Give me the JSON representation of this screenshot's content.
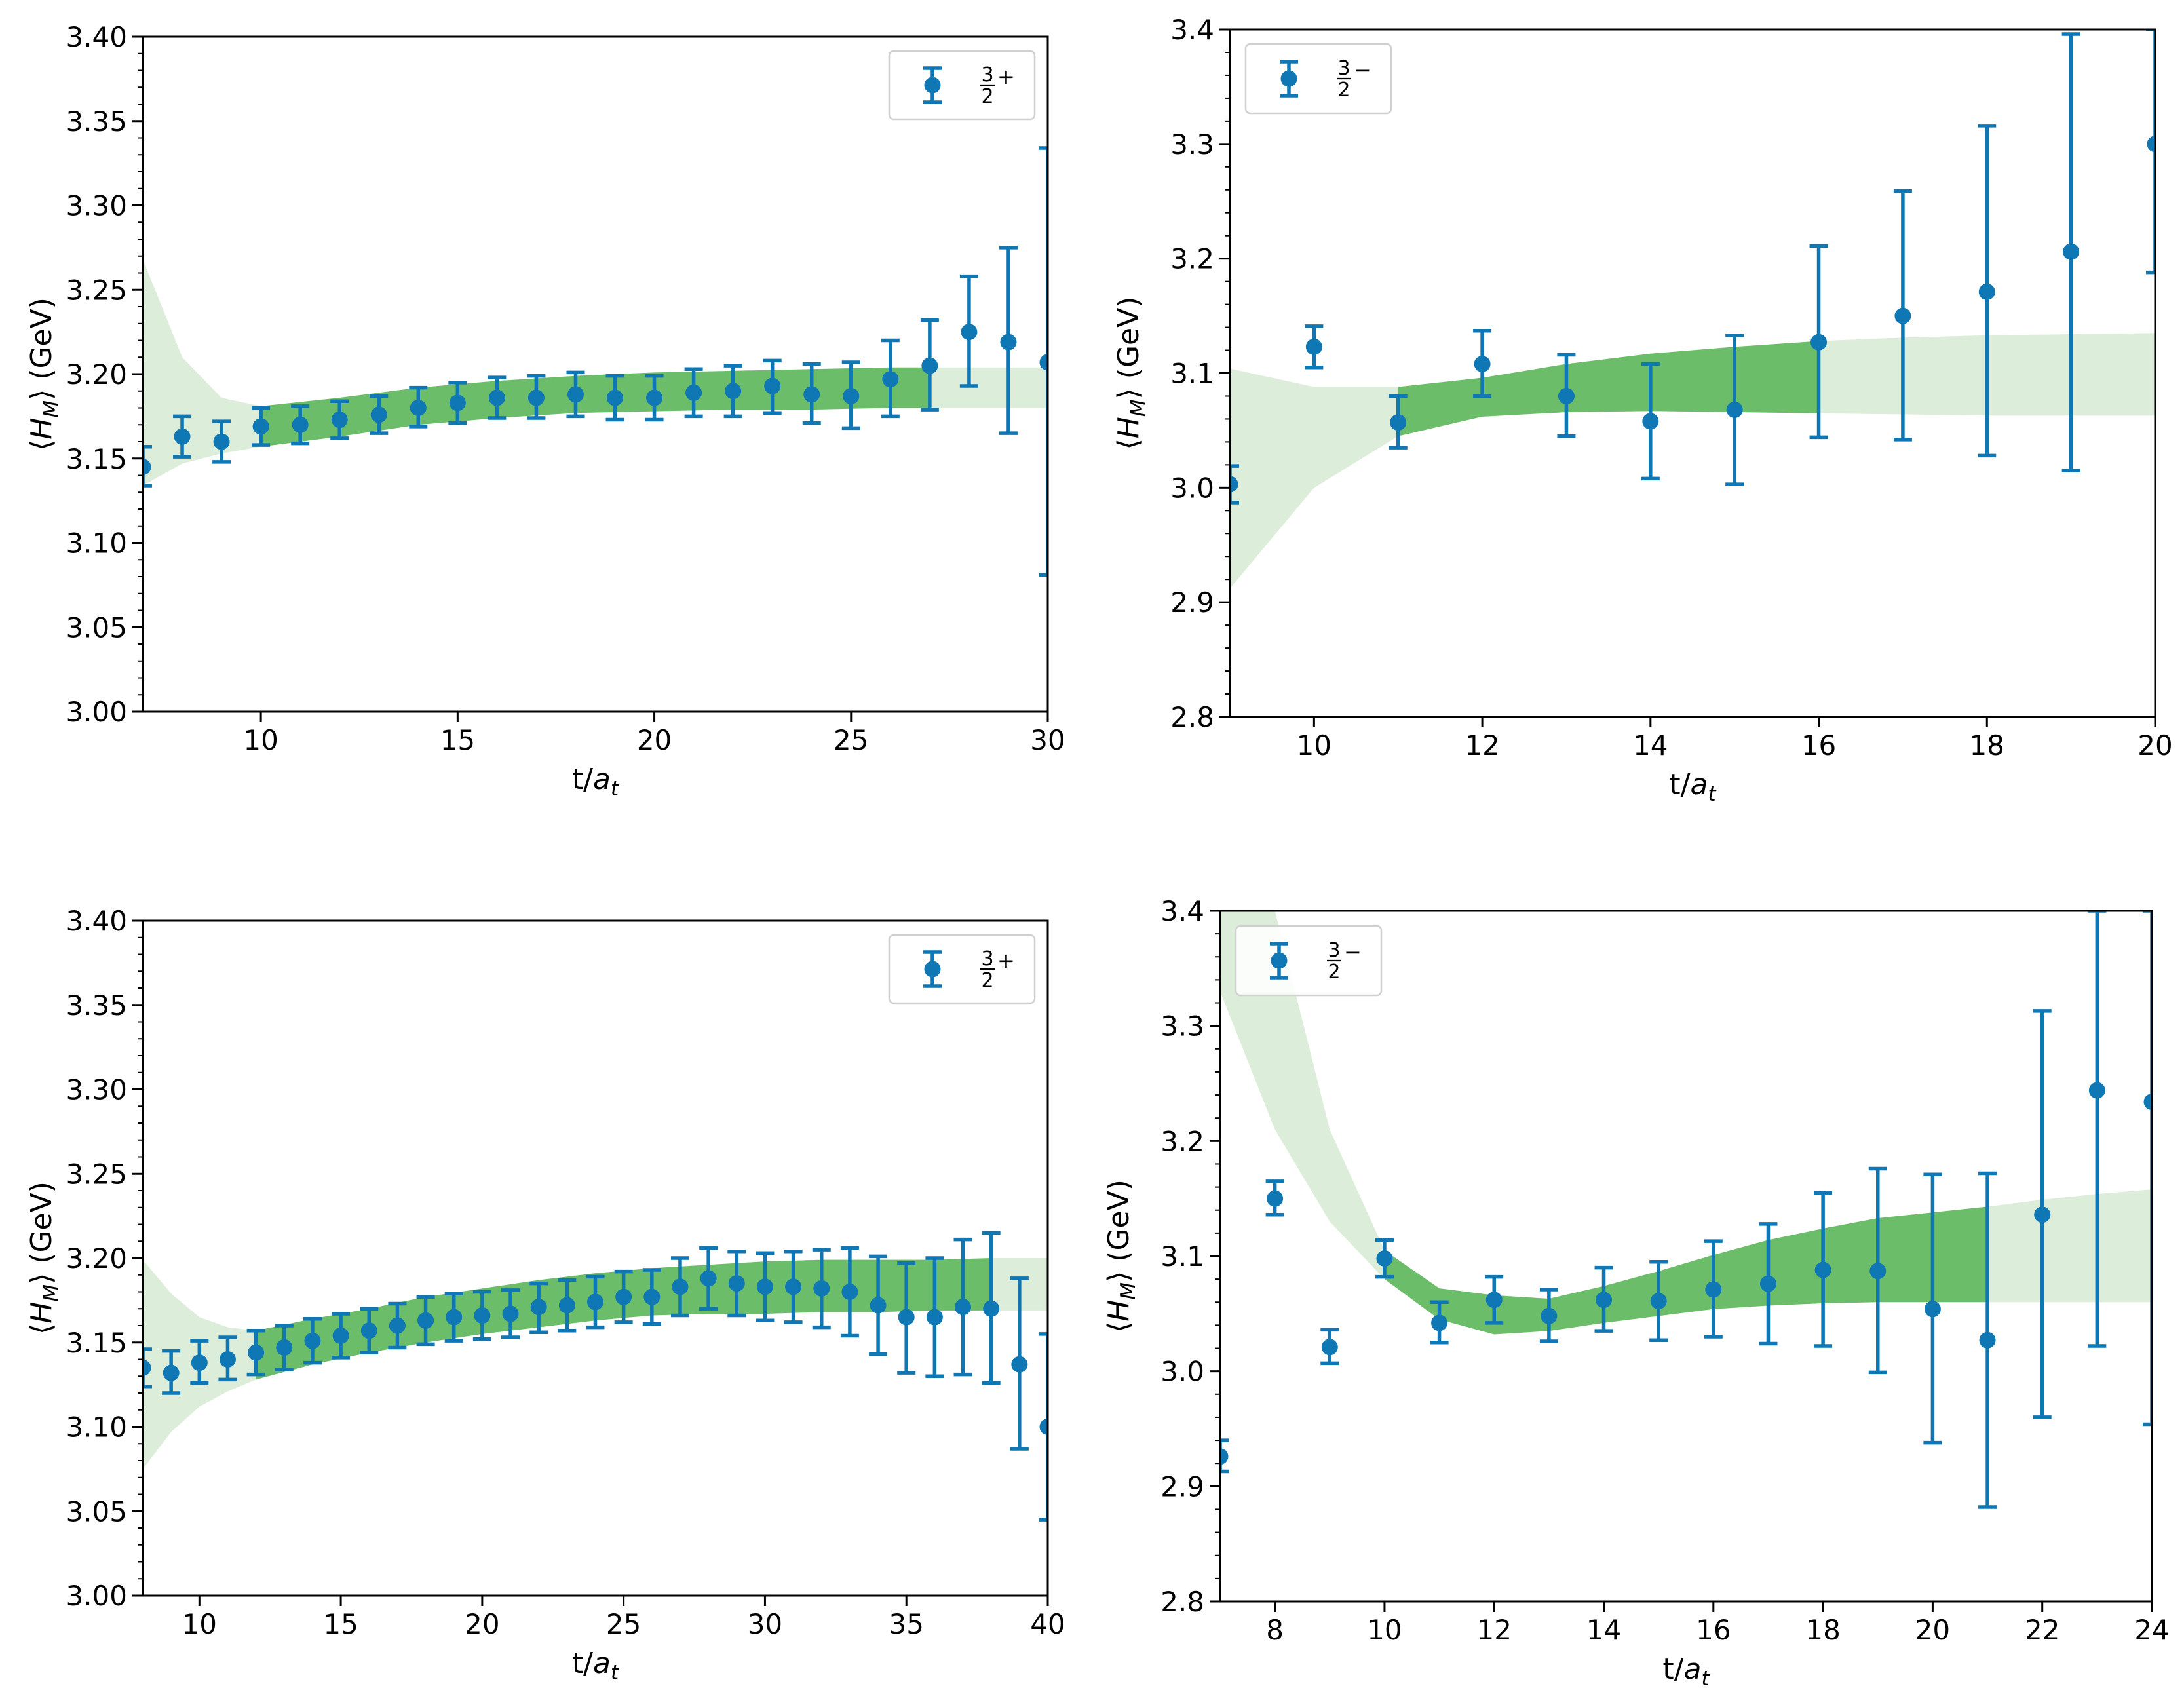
{
  "colors": {
    "points": "#0e77b4",
    "band_fit": "#6cbd69",
    "band_light": "#dcedd9",
    "axes": "#000000",
    "background": "#ffffff"
  },
  "chart_data": [
    {
      "type": "scatter",
      "panel": "top-left",
      "xlabel_text": "t/",
      "xlabel_symbol": "a",
      "xlabel_sub": "t",
      "ylabel_open": "⟨",
      "ylabel_symbol": "H",
      "ylabel_sub": "M",
      "ylabel_close": "⟩ (GeV)",
      "xlim": [
        7,
        30
      ],
      "ylim": [
        3.0,
        3.4
      ],
      "xticks": [
        10,
        15,
        20,
        25,
        30
      ],
      "xtick_labels": [
        "10",
        "15",
        "20",
        "25",
        "30"
      ],
      "yticks": [
        3.0,
        3.05,
        3.1,
        3.15,
        3.2,
        3.25,
        3.3,
        3.35,
        3.4
      ],
      "ytick_labels": [
        "3.00",
        "3.05",
        "3.10",
        "3.15",
        "3.20",
        "3.25",
        "3.30",
        "3.35",
        "3.40"
      ],
      "x_minor": [],
      "y_minor_step": 0.01,
      "legend": {
        "position": "upper right",
        "label_num": "3",
        "label_den": "2",
        "label_parity": "+"
      },
      "points": [
        [
          7,
          3.145,
          3.134,
          3.157
        ],
        [
          8,
          3.163,
          3.151,
          3.175
        ],
        [
          9,
          3.16,
          3.148,
          3.172
        ],
        [
          10,
          3.169,
          3.158,
          3.18
        ],
        [
          11,
          3.17,
          3.159,
          3.181
        ],
        [
          12,
          3.173,
          3.162,
          3.184
        ],
        [
          13,
          3.176,
          3.165,
          3.187
        ],
        [
          14,
          3.18,
          3.169,
          3.192
        ],
        [
          15,
          3.183,
          3.171,
          3.195
        ],
        [
          16,
          3.186,
          3.174,
          3.198
        ],
        [
          17,
          3.186,
          3.174,
          3.199
        ],
        [
          18,
          3.188,
          3.175,
          3.201
        ],
        [
          19,
          3.186,
          3.173,
          3.199
        ],
        [
          20,
          3.186,
          3.173,
          3.199
        ],
        [
          21,
          3.189,
          3.175,
          3.203
        ],
        [
          22,
          3.19,
          3.175,
          3.205
        ],
        [
          23,
          3.193,
          3.177,
          3.208
        ],
        [
          24,
          3.188,
          3.171,
          3.206
        ],
        [
          25,
          3.187,
          3.168,
          3.207
        ],
        [
          26,
          3.197,
          3.175,
          3.22
        ],
        [
          27,
          3.205,
          3.179,
          3.232
        ],
        [
          28,
          3.225,
          3.193,
          3.258
        ],
        [
          29,
          3.219,
          3.165,
          3.275
        ],
        [
          30,
          3.207,
          3.081,
          3.334
        ]
      ],
      "band_light": [
        [
          7,
          3.134,
          3.268
        ],
        [
          8,
          3.147,
          3.21
        ],
        [
          9,
          3.153,
          3.186
        ],
        [
          10,
          3.157,
          3.181
        ],
        [
          12,
          3.163,
          3.186
        ],
        [
          14,
          3.17,
          3.192
        ],
        [
          16,
          3.174,
          3.196
        ],
        [
          18,
          3.177,
          3.199
        ],
        [
          20,
          3.178,
          3.201
        ],
        [
          22,
          3.179,
          3.202
        ],
        [
          24,
          3.179,
          3.203
        ],
        [
          26,
          3.18,
          3.204
        ],
        [
          28,
          3.18,
          3.204
        ],
        [
          30,
          3.18,
          3.204
        ]
      ],
      "band_fit": [
        [
          10,
          3.157,
          3.181
        ],
        [
          12,
          3.163,
          3.186
        ],
        [
          14,
          3.17,
          3.192
        ],
        [
          16,
          3.174,
          3.196
        ],
        [
          18,
          3.177,
          3.199
        ],
        [
          20,
          3.178,
          3.201
        ],
        [
          22,
          3.179,
          3.202
        ],
        [
          24,
          3.179,
          3.203
        ],
        [
          26,
          3.18,
          3.204
        ],
        [
          27,
          3.18,
          3.204
        ]
      ]
    },
    {
      "type": "scatter",
      "panel": "top-right",
      "xlabel_text": "t/",
      "xlabel_symbol": "a",
      "xlabel_sub": "t",
      "ylabel_open": "⟨",
      "ylabel_symbol": "H",
      "ylabel_sub": "M",
      "ylabel_close": "⟩ (GeV)",
      "xlim": [
        9,
        20
      ],
      "ylim": [
        2.8,
        3.4
      ],
      "xticks": [
        10,
        12,
        14,
        16,
        18,
        20
      ],
      "xtick_labels": [
        "10",
        "12",
        "14",
        "16",
        "18",
        "20"
      ],
      "x_minor": [],
      "yticks": [
        2.8,
        2.9,
        3.0,
        3.1,
        3.2,
        3.3,
        3.4
      ],
      "ytick_labels": [
        "2.8",
        "2.9",
        "3.0",
        "3.1",
        "3.2",
        "3.3",
        "3.4"
      ],
      "y_minor_step": 0.02,
      "legend": {
        "position": "upper left",
        "label_num": "3",
        "label_den": "2",
        "label_parity": "−"
      },
      "points": [
        [
          9,
          3.003,
          2.987,
          3.019
        ],
        [
          10,
          3.123,
          3.105,
          3.141
        ],
        [
          11,
          3.057,
          3.035,
          3.08
        ],
        [
          12,
          3.108,
          3.08,
          3.137
        ],
        [
          13,
          3.08,
          3.045,
          3.116
        ],
        [
          14,
          3.058,
          3.008,
          3.108
        ],
        [
          15,
          3.068,
          3.003,
          3.133
        ],
        [
          16,
          3.127,
          3.044,
          3.211
        ],
        [
          17,
          3.15,
          3.042,
          3.259
        ],
        [
          18,
          3.171,
          3.028,
          3.316
        ],
        [
          19,
          3.206,
          3.015,
          3.396
        ],
        [
          20,
          3.3,
          3.188,
          3.4
        ]
      ],
      "band_light": [
        [
          9,
          2.912,
          3.104
        ],
        [
          10,
          3.0,
          3.088
        ],
        [
          11,
          3.045,
          3.088
        ],
        [
          12,
          3.062,
          3.096
        ],
        [
          13,
          3.066,
          3.108
        ],
        [
          14,
          3.067,
          3.117
        ],
        [
          15,
          3.066,
          3.123
        ],
        [
          16,
          3.065,
          3.128
        ],
        [
          17,
          3.064,
          3.131
        ],
        [
          18,
          3.063,
          3.133
        ],
        [
          19,
          3.063,
          3.134
        ],
        [
          20,
          3.063,
          3.135
        ]
      ],
      "band_fit": [
        [
          11,
          3.045,
          3.088
        ],
        [
          12,
          3.062,
          3.096
        ],
        [
          13,
          3.066,
          3.108
        ],
        [
          14,
          3.067,
          3.117
        ],
        [
          15,
          3.066,
          3.123
        ],
        [
          16,
          3.065,
          3.128
        ]
      ]
    },
    {
      "type": "scatter",
      "panel": "bottom-left",
      "xlabel_text": "t/",
      "xlabel_symbol": "a",
      "xlabel_sub": "t",
      "ylabel_open": "⟨",
      "ylabel_symbol": "H",
      "ylabel_sub": "M",
      "ylabel_close": "⟩ (GeV)",
      "xlim": [
        8,
        40
      ],
      "ylim": [
        3.0,
        3.4
      ],
      "xticks": [
        10,
        15,
        20,
        25,
        30,
        35,
        40
      ],
      "xtick_labels": [
        "10",
        "15",
        "20",
        "25",
        "30",
        "35",
        "40"
      ],
      "x_minor": [],
      "yticks": [
        3.0,
        3.05,
        3.1,
        3.15,
        3.2,
        3.25,
        3.3,
        3.35,
        3.4
      ],
      "ytick_labels": [
        "3.00",
        "3.05",
        "3.10",
        "3.15",
        "3.20",
        "3.25",
        "3.30",
        "3.35",
        "3.40"
      ],
      "y_minor_step": 0.01,
      "legend": {
        "position": "upper right",
        "label_num": "3",
        "label_den": "2",
        "label_parity": "+"
      },
      "points": [
        [
          8,
          3.135,
          3.124,
          3.146
        ],
        [
          9,
          3.132,
          3.12,
          3.145
        ],
        [
          10,
          3.138,
          3.126,
          3.151
        ],
        [
          11,
          3.14,
          3.128,
          3.153
        ],
        [
          12,
          3.144,
          3.131,
          3.157
        ],
        [
          13,
          3.147,
          3.134,
          3.16
        ],
        [
          14,
          3.151,
          3.138,
          3.164
        ],
        [
          15,
          3.154,
          3.141,
          3.167
        ],
        [
          16,
          3.157,
          3.144,
          3.17
        ],
        [
          17,
          3.16,
          3.147,
          3.173
        ],
        [
          18,
          3.163,
          3.149,
          3.177
        ],
        [
          19,
          3.165,
          3.151,
          3.179
        ],
        [
          20,
          3.166,
          3.152,
          3.18
        ],
        [
          21,
          3.167,
          3.153,
          3.181
        ],
        [
          22,
          3.171,
          3.156,
          3.185
        ],
        [
          23,
          3.172,
          3.157,
          3.187
        ],
        [
          24,
          3.174,
          3.159,
          3.189
        ],
        [
          25,
          3.177,
          3.162,
          3.192
        ],
        [
          26,
          3.177,
          3.161,
          3.193
        ],
        [
          27,
          3.183,
          3.166,
          3.2
        ],
        [
          28,
          3.188,
          3.17,
          3.206
        ],
        [
          29,
          3.185,
          3.166,
          3.204
        ],
        [
          30,
          3.183,
          3.163,
          3.203
        ],
        [
          31,
          3.183,
          3.162,
          3.204
        ],
        [
          32,
          3.182,
          3.159,
          3.205
        ],
        [
          33,
          3.18,
          3.154,
          3.206
        ],
        [
          34,
          3.172,
          3.143,
          3.201
        ],
        [
          35,
          3.165,
          3.132,
          3.197
        ],
        [
          36,
          3.165,
          3.13,
          3.2
        ],
        [
          37,
          3.171,
          3.131,
          3.211
        ],
        [
          38,
          3.17,
          3.126,
          3.215
        ],
        [
          39,
          3.137,
          3.087,
          3.188
        ],
        [
          40,
          3.1,
          3.045,
          3.155
        ]
      ],
      "band_light": [
        [
          8,
          3.075,
          3.199
        ],
        [
          9,
          3.097,
          3.179
        ],
        [
          10,
          3.112,
          3.165
        ],
        [
          11,
          3.121,
          3.159
        ],
        [
          12,
          3.128,
          3.157
        ],
        [
          14,
          3.137,
          3.164
        ],
        [
          16,
          3.144,
          3.17
        ],
        [
          18,
          3.15,
          3.177
        ],
        [
          20,
          3.155,
          3.182
        ],
        [
          22,
          3.159,
          3.187
        ],
        [
          24,
          3.163,
          3.191
        ],
        [
          26,
          3.166,
          3.194
        ],
        [
          28,
          3.167,
          3.196
        ],
        [
          30,
          3.167,
          3.198
        ],
        [
          32,
          3.168,
          3.199
        ],
        [
          34,
          3.168,
          3.199
        ],
        [
          36,
          3.169,
          3.199
        ],
        [
          38,
          3.169,
          3.2
        ],
        [
          40,
          3.169,
          3.2
        ]
      ],
      "band_fit": [
        [
          12,
          3.128,
          3.157
        ],
        [
          14,
          3.137,
          3.164
        ],
        [
          16,
          3.144,
          3.17
        ],
        [
          18,
          3.15,
          3.177
        ],
        [
          20,
          3.155,
          3.182
        ],
        [
          22,
          3.159,
          3.187
        ],
        [
          24,
          3.163,
          3.191
        ],
        [
          26,
          3.166,
          3.194
        ],
        [
          28,
          3.167,
          3.196
        ],
        [
          30,
          3.167,
          3.198
        ],
        [
          32,
          3.168,
          3.199
        ],
        [
          34,
          3.168,
          3.199
        ],
        [
          36,
          3.169,
          3.199
        ],
        [
          38,
          3.169,
          3.2
        ]
      ]
    },
    {
      "type": "scatter",
      "panel": "bottom-right",
      "xlabel_text": "t/",
      "xlabel_symbol": "a",
      "xlabel_sub": "t",
      "ylabel_open": "⟨",
      "ylabel_symbol": "H",
      "ylabel_sub": "M",
      "ylabel_close": "⟩ (GeV)",
      "xlim": [
        7,
        24
      ],
      "ylim": [
        2.8,
        3.4
      ],
      "xticks": [
        8,
        10,
        12,
        14,
        16,
        18,
        20,
        22,
        24
      ],
      "xtick_labels": [
        "8",
        "10",
        "12",
        "14",
        "16",
        "18",
        "20",
        "22",
        "24"
      ],
      "x_minor": [],
      "yticks": [
        2.8,
        2.9,
        3.0,
        3.1,
        3.2,
        3.3,
        3.4
      ],
      "ytick_labels": [
        "2.8",
        "2.9",
        "3.0",
        "3.1",
        "3.2",
        "3.3",
        "3.4"
      ],
      "y_minor_step": 0.02,
      "legend": {
        "position": "upper left",
        "label_num": "3",
        "label_den": "2",
        "label_parity": "−"
      },
      "points": [
        [
          7,
          2.926,
          2.913,
          2.94
        ],
        [
          8,
          3.15,
          3.136,
          3.165
        ],
        [
          9,
          3.021,
          3.007,
          3.036
        ],
        [
          10,
          3.098,
          3.082,
          3.114
        ],
        [
          11,
          3.042,
          3.025,
          3.06
        ],
        [
          12,
          3.062,
          3.042,
          3.082
        ],
        [
          13,
          3.048,
          3.026,
          3.071
        ],
        [
          14,
          3.062,
          3.035,
          3.09
        ],
        [
          15,
          3.061,
          3.027,
          3.095
        ],
        [
          16,
          3.071,
          3.03,
          3.113
        ],
        [
          17,
          3.076,
          3.024,
          3.128
        ],
        [
          18,
          3.088,
          3.022,
          3.155
        ],
        [
          19,
          3.087,
          2.999,
          3.176
        ],
        [
          20,
          3.054,
          2.938,
          3.171
        ],
        [
          21,
          3.027,
          2.882,
          3.172
        ],
        [
          22,
          3.136,
          2.96,
          3.313
        ],
        [
          23,
          3.244,
          3.022,
          3.4
        ],
        [
          24,
          3.234,
          2.954,
          3.4
        ]
      ],
      "band_light": [
        [
          7,
          3.33,
          3.48
        ],
        [
          8,
          3.21,
          3.4
        ],
        [
          9,
          3.13,
          3.21
        ],
        [
          10,
          3.08,
          3.105
        ],
        [
          11,
          3.045,
          3.072
        ],
        [
          12,
          3.032,
          3.066
        ],
        [
          13,
          3.035,
          3.063
        ],
        [
          14,
          3.042,
          3.074
        ],
        [
          15,
          3.048,
          3.087
        ],
        [
          16,
          3.054,
          3.101
        ],
        [
          17,
          3.057,
          3.114
        ],
        [
          18,
          3.059,
          3.124
        ],
        [
          19,
          3.06,
          3.133
        ],
        [
          20,
          3.06,
          3.138
        ],
        [
          21,
          3.06,
          3.143
        ],
        [
          22,
          3.06,
          3.149
        ],
        [
          23,
          3.06,
          3.154
        ],
        [
          24,
          3.06,
          3.158
        ]
      ],
      "band_fit": [
        [
          10,
          3.08,
          3.105
        ],
        [
          11,
          3.045,
          3.072
        ],
        [
          12,
          3.032,
          3.066
        ],
        [
          13,
          3.035,
          3.063
        ],
        [
          14,
          3.042,
          3.074
        ],
        [
          15,
          3.048,
          3.087
        ],
        [
          16,
          3.054,
          3.101
        ],
        [
          17,
          3.057,
          3.114
        ],
        [
          18,
          3.059,
          3.124
        ],
        [
          19,
          3.06,
          3.133
        ],
        [
          20,
          3.06,
          3.138
        ],
        [
          21,
          3.06,
          3.143
        ]
      ]
    }
  ]
}
